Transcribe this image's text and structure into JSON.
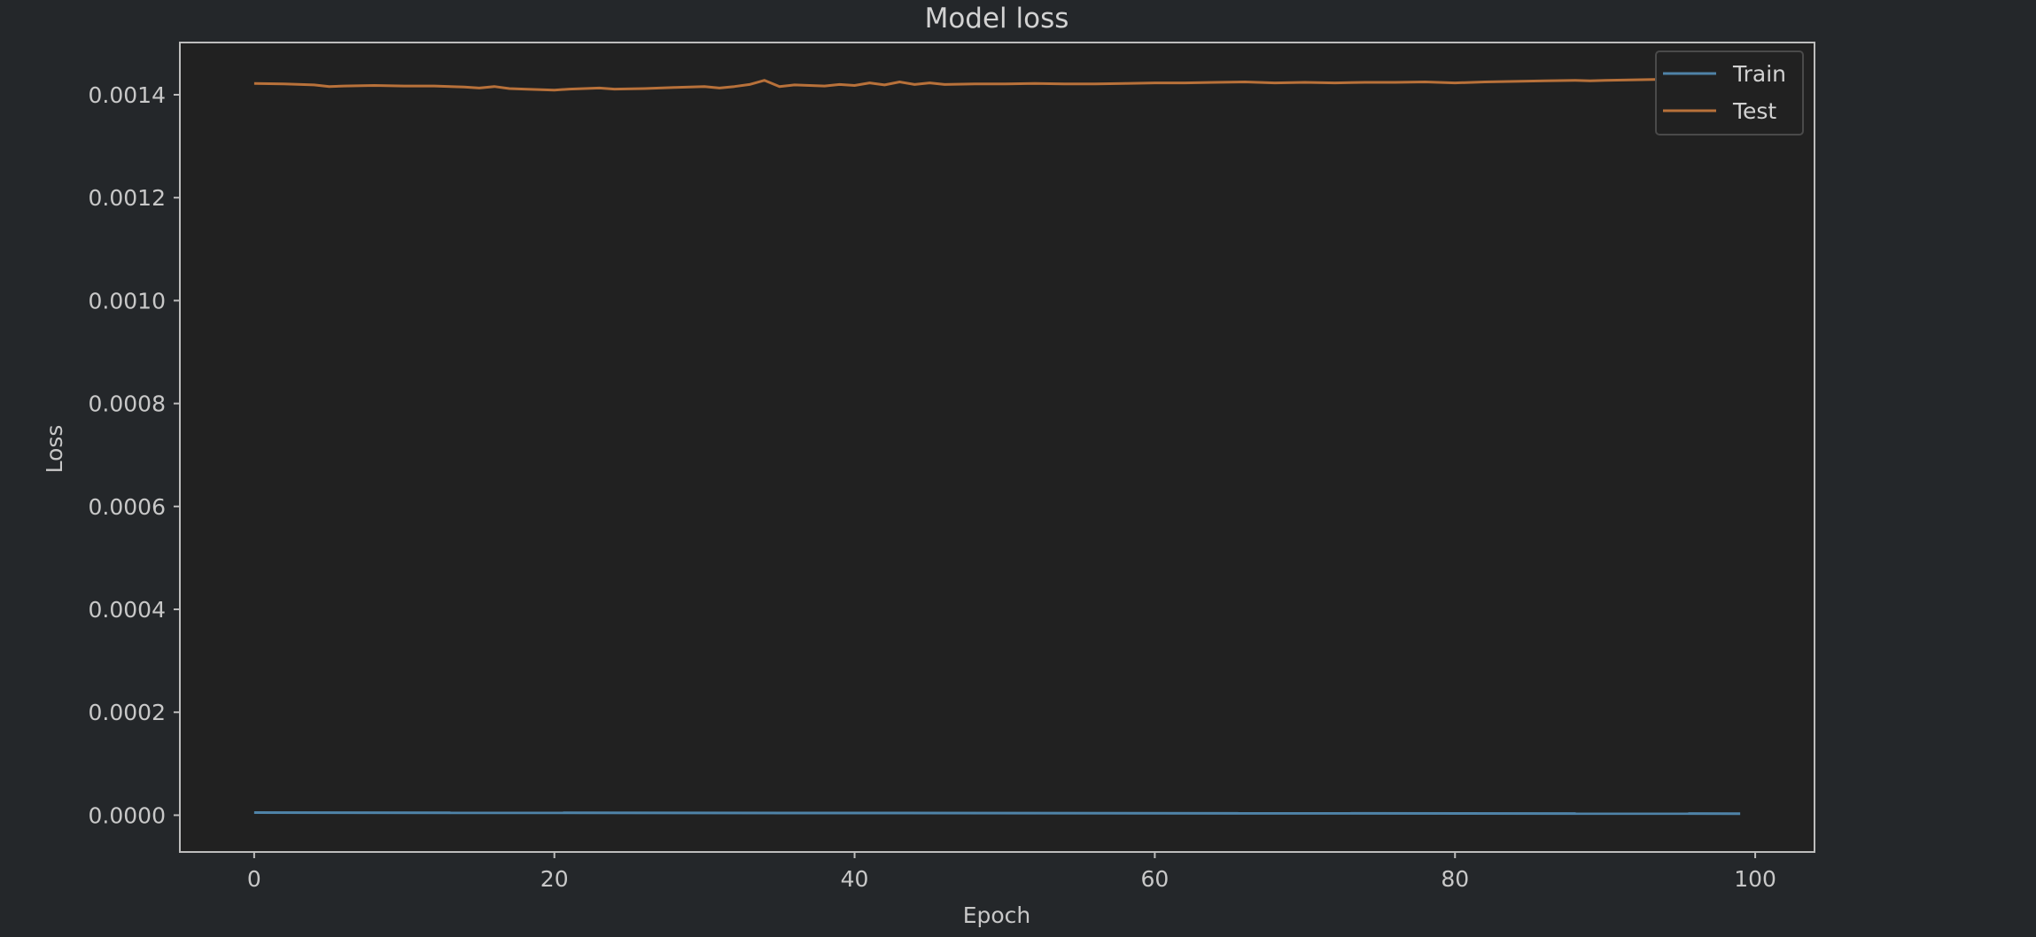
{
  "chart_data": {
    "type": "line",
    "title": "Model loss",
    "xlabel": "Epoch",
    "ylabel": "Loss",
    "xlim": [
      -4.95,
      103.95
    ],
    "ylim": [
      -7.15e-05,
      0.0015015
    ],
    "xticks": [
      0,
      20,
      40,
      60,
      80,
      100
    ],
    "xtick_labels": [
      "0",
      "20",
      "40",
      "60",
      "80",
      "100"
    ],
    "yticks": [
      0.0,
      0.0002,
      0.0004,
      0.0006,
      0.0008,
      0.001,
      0.0012,
      0.0014
    ],
    "ytick_labels": [
      "0.0000",
      "0.0002",
      "0.0004",
      "0.0006",
      "0.0008",
      "0.0010",
      "0.0012",
      "0.0014"
    ],
    "grid": false,
    "legend_position": "upper right",
    "colors": {
      "background": "#24272a",
      "plot_area": "#212121",
      "frame": "#bdbdbd",
      "text": "#c8c8c8",
      "train": "#4f83a8",
      "test": "#b8713a"
    },
    "series": [
      {
        "name": "Train",
        "color": "#4f83a8",
        "x_start": 0,
        "x_end": 99,
        "y_start": 5e-06,
        "y_end": 3e-06
      },
      {
        "name": "Test",
        "color": "#b8713a",
        "x": [
          0,
          2,
          4,
          5,
          6,
          8,
          10,
          12,
          14,
          15,
          16,
          17,
          18,
          20,
          21,
          22,
          23,
          24,
          26,
          28,
          30,
          31,
          32,
          33,
          34,
          35,
          36,
          38,
          39,
          40,
          41,
          42,
          43,
          44,
          45,
          46,
          48,
          50,
          52,
          54,
          55,
          56,
          58,
          60,
          62,
          64,
          66,
          68,
          70,
          72,
          74,
          76,
          78,
          80,
          82,
          84,
          86,
          88,
          89,
          90,
          92,
          94,
          96,
          98,
          99
        ],
        "y": [
          0.001422,
          0.001421,
          0.001419,
          0.001416,
          0.001417,
          0.001418,
          0.001417,
          0.001417,
          0.001415,
          0.001413,
          0.001416,
          0.001412,
          0.001411,
          0.001409,
          0.001411,
          0.001412,
          0.001413,
          0.001411,
          0.001412,
          0.001414,
          0.001416,
          0.001413,
          0.001416,
          0.00142,
          0.001428,
          0.001416,
          0.001419,
          0.001417,
          0.00142,
          0.001418,
          0.001423,
          0.001419,
          0.001425,
          0.00142,
          0.001423,
          0.00142,
          0.001421,
          0.001421,
          0.001422,
          0.001421,
          0.001421,
          0.001421,
          0.001422,
          0.001423,
          0.001423,
          0.001424,
          0.001425,
          0.001423,
          0.001424,
          0.001423,
          0.001424,
          0.001424,
          0.001425,
          0.001423,
          0.001425,
          0.001426,
          0.001427,
          0.001428,
          0.001427,
          0.001428,
          0.001429,
          0.00143,
          0.00143,
          0.001431,
          0.00143
        ]
      }
    ]
  }
}
